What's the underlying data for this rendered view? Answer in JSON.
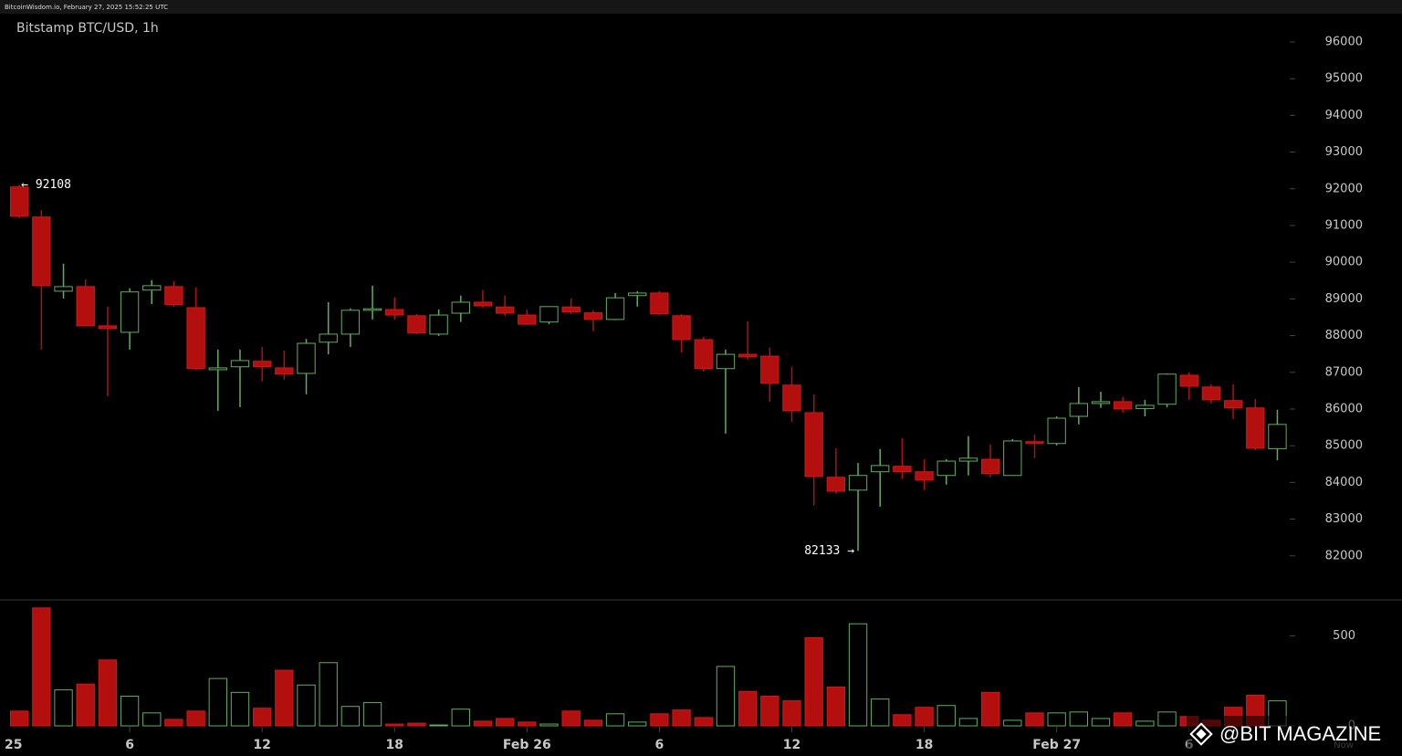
{
  "chart_data": {
    "type": "candlestick",
    "source": "BitcoinWisdom.io, February 27, 2025 15:52:25 UTC",
    "title": "Bitstamp BTC/USD, 1h",
    "watermark": "@BIT MAGAZINE",
    "x": [
      1,
      2,
      3,
      4,
      5,
      6,
      7,
      8,
      9,
      10,
      11,
      12,
      13,
      14,
      15,
      16,
      17,
      18,
      19,
      20,
      21,
      22,
      23,
      24,
      25,
      26,
      27,
      28,
      29,
      30,
      31,
      32,
      33,
      34,
      35,
      36,
      37,
      38,
      39,
      40,
      41,
      42,
      43,
      44,
      45,
      46,
      47,
      48,
      49,
      50,
      51,
      52,
      53,
      54,
      55,
      56,
      57,
      58
    ],
    "open": [
      92050,
      91230,
      89210,
      89335,
      88265,
      88090,
      89240,
      89335,
      88760,
      87070,
      87150,
      87300,
      87120,
      86970,
      87820,
      88040,
      88690,
      88710,
      88540,
      88040,
      88610,
      88910,
      88780,
      88560,
      88370,
      88780,
      88620,
      88440,
      89090,
      89160,
      88540,
      87890,
      87100,
      87490,
      87440,
      86650,
      85900,
      84140,
      83790,
      84290,
      84440,
      84290,
      84190,
      84580,
      84630,
      84190,
      85110,
      85060,
      85800,
      86150,
      86200,
      86010,
      86130,
      86920,
      86600,
      86230,
      86030,
      84920
    ],
    "high": [
      92108,
      91420,
      89960,
      89530,
      88790,
      89290,
      89510,
      89480,
      89310,
      87620,
      87620,
      87690,
      87590,
      87910,
      88910,
      88740,
      89360,
      89040,
      88590,
      88710,
      89090,
      89240,
      89090,
      88710,
      88800,
      89010,
      88690,
      89160,
      89210,
      89210,
      88590,
      87970,
      87620,
      88390,
      87670,
      87150,
      86400,
      84930,
      84530,
      84910,
      85210,
      84630,
      84630,
      85260,
      85030,
      85180,
      85300,
      85800,
      86600,
      86470,
      86330,
      86250,
      86970,
      87000,
      86670,
      86670,
      86270,
      85980
    ],
    "low": [
      91200,
      87620,
      89010,
      88260,
      86350,
      87620,
      88860,
      88790,
      87050,
      85950,
      86050,
      86750,
      86800,
      86400,
      87490,
      87690,
      88440,
      88440,
      88040,
      87990,
      88370,
      88760,
      88540,
      88290,
      88310,
      88590,
      88120,
      88420,
      88790,
      88560,
      87540,
      87020,
      85330,
      87340,
      86200,
      85650,
      83370,
      83690,
      82133,
      83340,
      84090,
      83790,
      83940,
      84190,
      84140,
      84190,
      84660,
      85010,
      85580,
      86030,
      85900,
      85800,
      86050,
      86250,
      86150,
      85730,
      84880,
      84600
    ],
    "close": [
      91250,
      89360,
      89335,
      88265,
      88190,
      89190,
      89360,
      88840,
      87100,
      87120,
      87320,
      87150,
      86950,
      87790,
      88040,
      88690,
      88730,
      88560,
      88070,
      88560,
      88910,
      88810,
      88610,
      88310,
      88790,
      88640,
      88440,
      89030,
      89160,
      88590,
      87890,
      87100,
      87490,
      87420,
      86700,
      85950,
      84160,
      83760,
      84190,
      84460,
      84290,
      84060,
      84580,
      84660,
      84240,
      85130,
      85060,
      85750,
      86150,
      86200,
      86000,
      86100,
      86950,
      86620,
      86250,
      86030,
      84930,
      85580
    ],
    "volume": [
      82,
      655,
      200,
      232,
      366,
      165,
      72,
      36,
      82,
      263,
      186,
      98,
      309,
      227,
      351,
      108,
      129,
      10,
      15,
      5,
      93,
      26,
      41,
      21,
      10,
      82,
      31,
      67,
      21,
      67,
      88,
      46,
      330,
      191,
      165,
      139,
      490,
      216,
      567,
      149,
      62,
      103,
      113,
      41,
      186,
      31,
      72,
      72,
      77,
      41,
      72,
      26,
      77,
      52,
      31,
      103,
      170,
      139
    ],
    "xlim": [
      0,
      61
    ],
    "xticks": [
      {
        "value": 0,
        "label": "25"
      },
      6,
      12,
      18,
      {
        "value": 24,
        "label": "Feb 26"
      },
      {
        "value": 30,
        "label": "6"
      },
      {
        "value": 36,
        "label": "12"
      },
      {
        "value": 42,
        "label": "18"
      },
      {
        "value": 48,
        "label": "Feb 27"
      },
      {
        "value": 54,
        "label": "6"
      },
      {
        "value": 61,
        "label": "Now"
      }
    ],
    "ylim": [
      80800,
      96770
    ],
    "yticks": [
      82000,
      83000,
      84000,
      85000,
      86000,
      87000,
      88000,
      89000,
      90000,
      91000,
      92000,
      93000,
      94000,
      95000,
      96000
    ],
    "y2lim": [
      0,
      710
    ],
    "y2ticks": [
      0,
      500
    ],
    "annotations": [
      {
        "x": 1,
        "value": 92108,
        "label": "← 92108"
      },
      {
        "x": 39,
        "value": 82133,
        "label": "82133 →"
      }
    ],
    "up_color": "#5fae5f",
    "down_color": "#b30f0f"
  }
}
